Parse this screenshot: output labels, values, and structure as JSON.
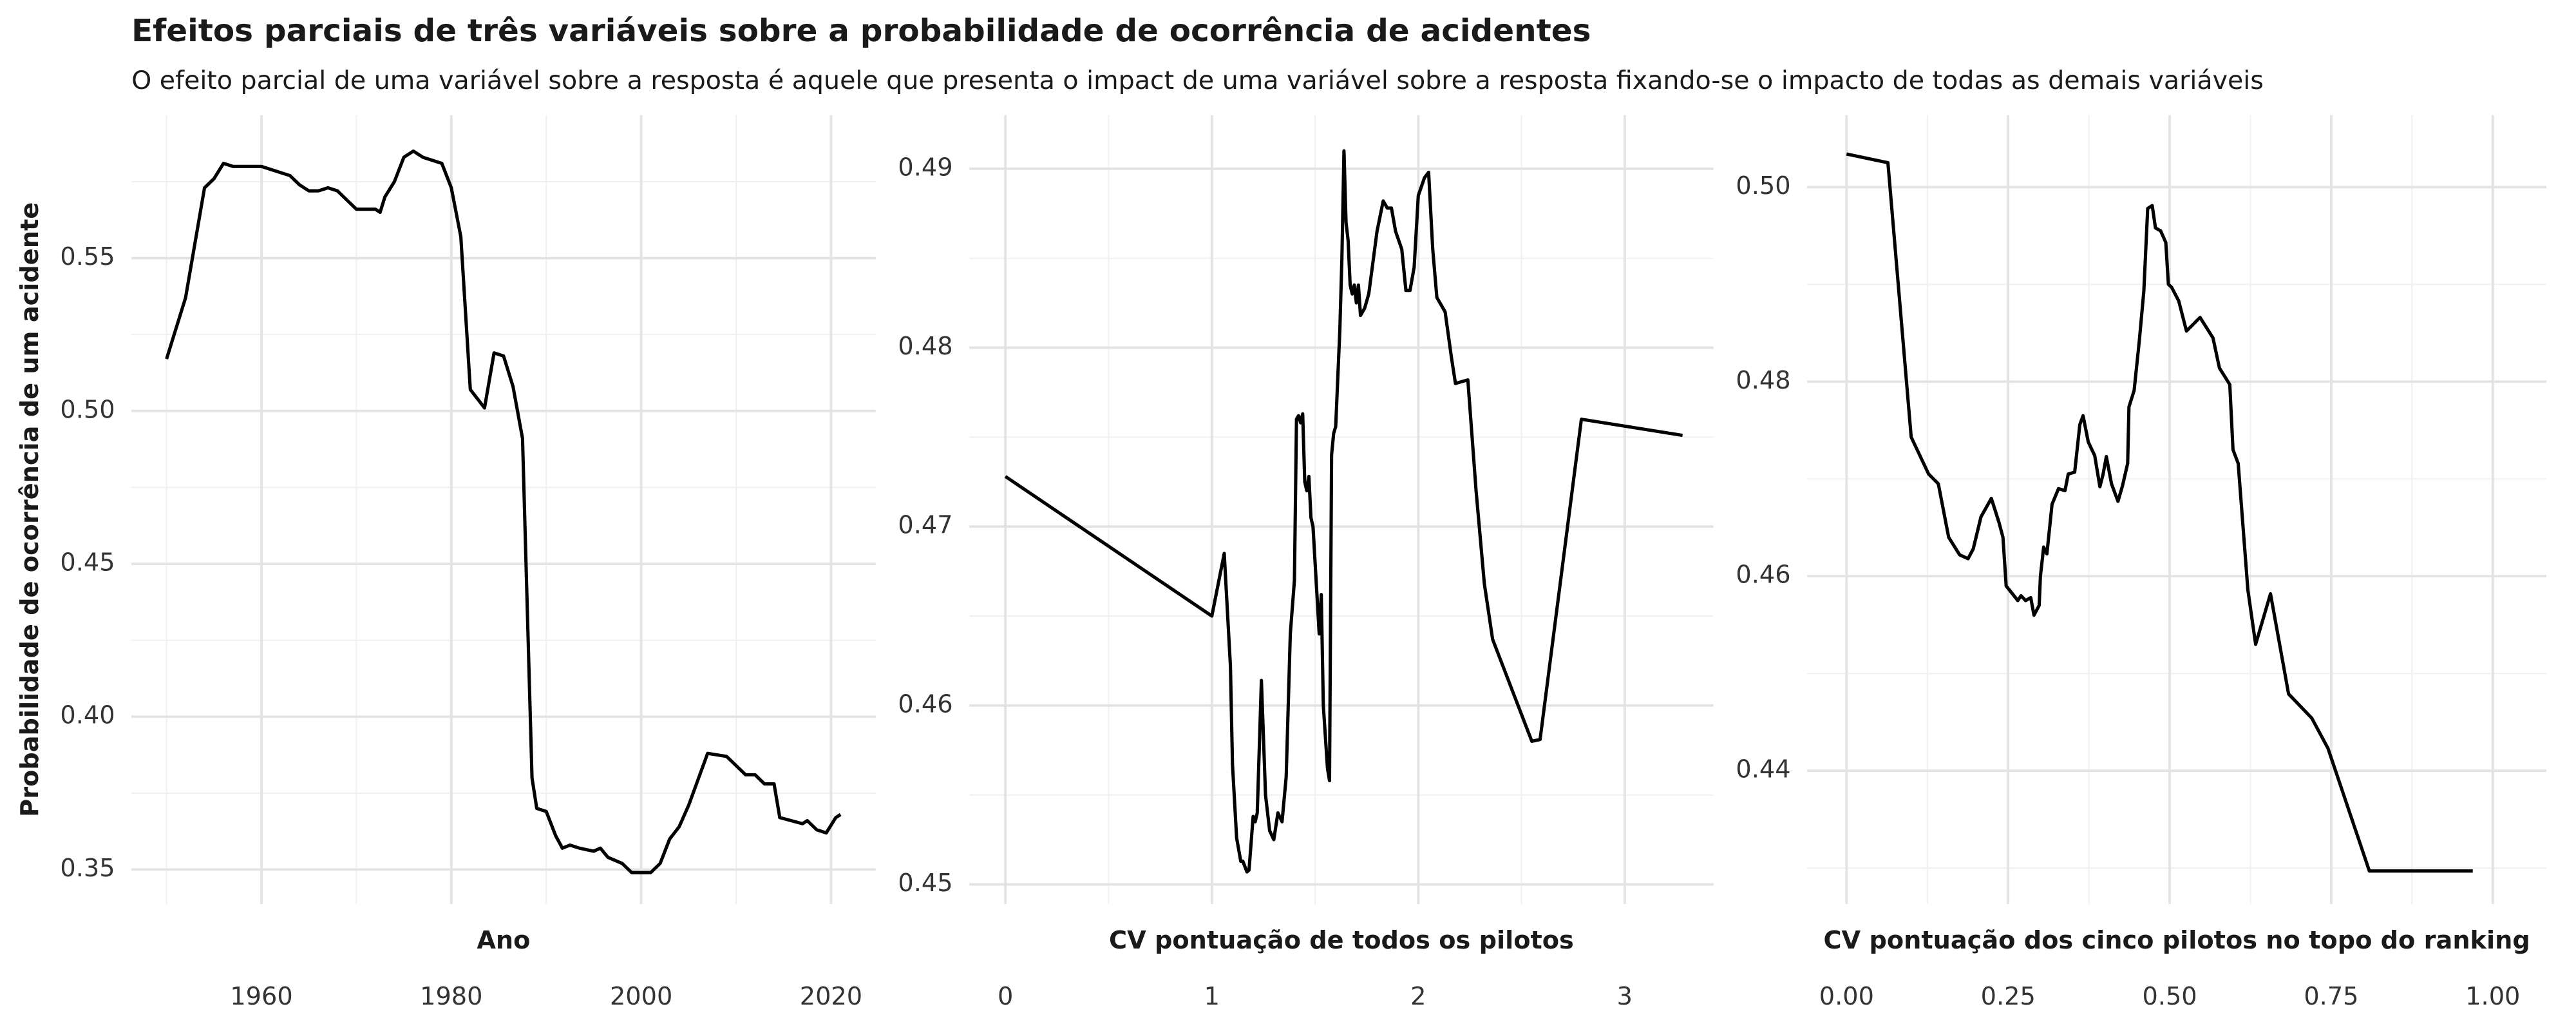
{
  "title": "Efeitos parciais de três variáveis sobre a probabilidade de ocorrência de acidentes",
  "subtitle": "O efeito parcial de uma variável sobre a resposta é aquele que presenta o impact de uma variável sobre a resposta fixando-se o impacto de todas as demais variáveis",
  "chart_data": [
    {
      "type": "line",
      "xlabel": "Ano",
      "ylabel": "Probabilidade de ocorrência de um acidente",
      "color": "#000000",
      "grid": true,
      "x": [
        1950,
        1952,
        1954,
        1955,
        1956,
        1957,
        1960,
        1961,
        1963,
        1964,
        1965,
        1966,
        1967,
        1968,
        1970,
        1972,
        1972.5,
        1973,
        1974,
        1975,
        1976,
        1977,
        1979,
        1980,
        1981,
        1982,
        1983.5,
        1984.5,
        1985.5,
        1986.5,
        1987.5,
        1988.5,
        1989,
        1990,
        1991,
        1991.7,
        1992.5,
        1993.5,
        1995,
        1995.7,
        1996.5,
        1998,
        1999,
        2000,
        2001,
        2002,
        2003,
        2004,
        2005,
        2007,
        2009,
        2010,
        2011,
        2012,
        2013,
        2014,
        2014.6,
        2017,
        2017.5,
        2018.5,
        2019.5,
        2020.5,
        2021
      ],
      "values": [
        0.517,
        0.537,
        0.573,
        0.576,
        0.581,
        0.58,
        0.58,
        0.579,
        0.577,
        0.574,
        0.572,
        0.572,
        0.573,
        0.572,
        0.566,
        0.566,
        0.565,
        0.57,
        0.575,
        0.583,
        0.585,
        0.583,
        0.581,
        0.573,
        0.557,
        0.507,
        0.501,
        0.519,
        0.518,
        0.508,
        0.491,
        0.38,
        0.37,
        0.369,
        0.361,
        0.357,
        0.358,
        0.357,
        0.356,
        0.357,
        0.354,
        0.352,
        0.349,
        0.349,
        0.349,
        0.352,
        0.36,
        0.364,
        0.371,
        0.388,
        0.387,
        0.384,
        0.381,
        0.381,
        0.378,
        0.378,
        0.367,
        0.365,
        0.366,
        0.363,
        0.362,
        0.367,
        0.368
      ],
      "xlim": [
        1946.3,
        2024.7
      ],
      "ylim": [
        0.3387,
        0.5968
      ],
      "xticks": [
        1960,
        1980,
        2000,
        2020
      ],
      "yticks": [
        0.35,
        {
          "value": 0.4,
          "label": "0.40"
        },
        0.45,
        {
          "value": 0.5,
          "label": "0.50"
        },
        0.55
      ],
      "xminor": [
        1950,
        1970,
        1990,
        2010
      ],
      "yminor": [
        0.375,
        0.425,
        0.475,
        0.525,
        0.575
      ]
    },
    {
      "type": "line",
      "xlabel": "CV pontuação de todos os pilotos",
      "color": "#000000",
      "grid": true,
      "x": [
        0,
        1.0,
        1.06,
        1.09,
        1.1,
        1.12,
        1.14,
        1.15,
        1.17,
        1.18,
        1.2,
        1.21,
        1.22,
        1.24,
        1.26,
        1.28,
        1.3,
        1.32,
        1.34,
        1.36,
        1.38,
        1.4,
        1.41,
        1.42,
        1.43,
        1.44,
        1.45,
        1.46,
        1.47,
        1.48,
        1.49,
        1.5,
        1.51,
        1.52,
        1.53,
        1.54,
        1.56,
        1.57,
        1.58,
        1.59,
        1.6,
        1.62,
        1.63,
        1.64,
        1.65,
        1.66,
        1.67,
        1.68,
        1.69,
        1.7,
        1.71,
        1.72,
        1.74,
        1.76,
        1.8,
        1.83,
        1.85,
        1.87,
        1.89,
        1.92,
        1.94,
        1.96,
        1.98,
        2.0,
        2.03,
        2.05,
        2.07,
        2.09,
        2.13,
        2.16,
        2.18,
        2.24,
        2.28,
        2.32,
        2.36,
        2.45,
        2.55,
        2.59,
        2.79,
        3.28
      ],
      "values": [
        0.4728,
        0.465,
        0.4685,
        0.4622,
        0.4567,
        0.4526,
        0.4513,
        0.4513,
        0.4507,
        0.4508,
        0.4538,
        0.4535,
        0.454,
        0.4614,
        0.455,
        0.453,
        0.4525,
        0.454,
        0.4535,
        0.456,
        0.464,
        0.467,
        0.476,
        0.4762,
        0.4758,
        0.4763,
        0.4725,
        0.472,
        0.4728,
        0.4705,
        0.47,
        0.468,
        0.466,
        0.464,
        0.4662,
        0.46,
        0.4565,
        0.4558,
        0.474,
        0.4752,
        0.4756,
        0.481,
        0.485,
        0.491,
        0.487,
        0.486,
        0.4835,
        0.483,
        0.4835,
        0.4825,
        0.4835,
        0.4818,
        0.4822,
        0.483,
        0.4865,
        0.4882,
        0.4878,
        0.4878,
        0.4865,
        0.4855,
        0.4832,
        0.4832,
        0.4845,
        0.4885,
        0.4895,
        0.4898,
        0.4855,
        0.4828,
        0.482,
        0.4795,
        0.478,
        0.4782,
        0.472,
        0.4668,
        0.4637,
        0.461,
        0.458,
        0.4581,
        0.476,
        0.4751
      ],
      "xlim": [
        -0.175,
        3.43
      ],
      "ylim": [
        0.4489,
        0.493
      ],
      "xticks": [
        0,
        1,
        2,
        3
      ],
      "yticks": [
        0.45,
        0.46,
        0.47,
        0.48,
        0.49
      ],
      "xminor": [
        0.5,
        1.5,
        2.5
      ],
      "yminor": [
        0.455,
        0.465,
        0.475,
        0.485
      ]
    },
    {
      "type": "line",
      "xlabel": "CV pontuação dos cinco pilotos no topo do ranking",
      "color": "#000000",
      "grid": true,
      "x": [
        0,
        0.064,
        0.1,
        0.127,
        0.142,
        0.158,
        0.175,
        0.188,
        0.196,
        0.208,
        0.224,
        0.236,
        0.242,
        0.247,
        0.265,
        0.27,
        0.277,
        0.285,
        0.29,
        0.298,
        0.3,
        0.305,
        0.31,
        0.318,
        0.328,
        0.338,
        0.343,
        0.353,
        0.361,
        0.366,
        0.374,
        0.384,
        0.392,
        0.397,
        0.402,
        0.41,
        0.42,
        0.427,
        0.435,
        0.437,
        0.445,
        0.453,
        0.46,
        0.466,
        0.473,
        0.478,
        0.486,
        0.494,
        0.498,
        0.503,
        0.514,
        0.526,
        0.547,
        0.567,
        0.577,
        0.593,
        0.598,
        0.606,
        0.621,
        0.633,
        0.656,
        0.684,
        0.72,
        0.745,
        0.809,
        0.969
      ],
      "values": [
        0.5034,
        0.5025,
        0.4743,
        0.4705,
        0.4695,
        0.464,
        0.4622,
        0.4618,
        0.4628,
        0.4661,
        0.468,
        0.4655,
        0.464,
        0.459,
        0.4575,
        0.458,
        0.4575,
        0.4578,
        0.456,
        0.457,
        0.46,
        0.463,
        0.4623,
        0.4674,
        0.469,
        0.4688,
        0.4705,
        0.4707,
        0.4756,
        0.4765,
        0.4738,
        0.4724,
        0.4692,
        0.4705,
        0.4723,
        0.4695,
        0.4677,
        0.4693,
        0.4716,
        0.4774,
        0.4791,
        0.4842,
        0.4893,
        0.4978,
        0.4981,
        0.4958,
        0.4955,
        0.4943,
        0.49,
        0.4897,
        0.4883,
        0.4852,
        0.4866,
        0.4845,
        0.4814,
        0.4797,
        0.473,
        0.4716,
        0.4586,
        0.453,
        0.4582,
        0.4479,
        0.4454,
        0.4423,
        0.4297,
        0.4297
      ],
      "xlim": [
        -0.061,
        1.083
      ],
      "ylim": [
        0.4263,
        0.5074
      ],
      "xticks": [
        {
          "value": 0,
          "label": "0.00"
        },
        0.25,
        {
          "value": 0.5,
          "label": "0.50"
        },
        0.75,
        {
          "value": 1,
          "label": "1.00"
        }
      ],
      "yticks": [
        0.44,
        0.46,
        0.48,
        {
          "value": 0.5,
          "label": "0.50"
        }
      ],
      "xminor": [
        0.125,
        0.375,
        0.625,
        0.875
      ],
      "yminor": [
        0.43,
        0.45,
        0.47,
        0.49
      ]
    }
  ]
}
